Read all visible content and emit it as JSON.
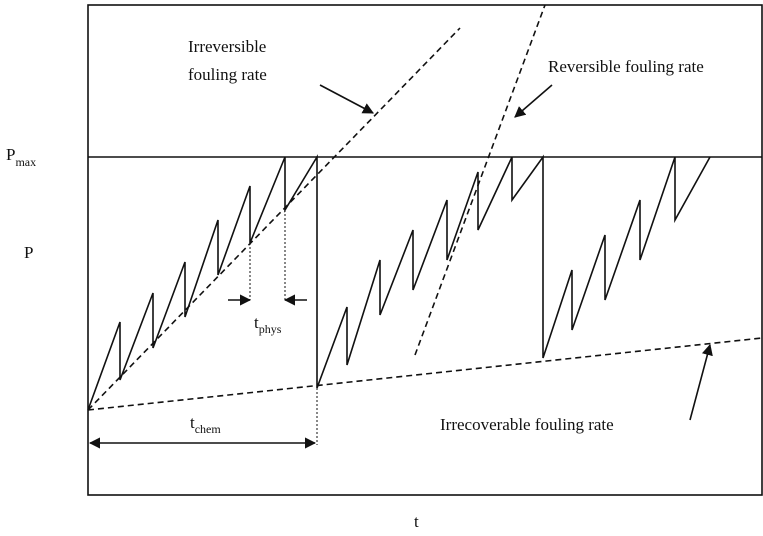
{
  "annotations": {
    "irreversible_line1": "Irreversible",
    "irreversible_line2": "fouling rate",
    "reversible": "Reversible fouling rate",
    "irrecoverable": "Irrecoverable fouling rate"
  },
  "axes": {
    "y_max": {
      "main": "P",
      "sub": "max"
    },
    "y": "P",
    "x": "t"
  },
  "intervals": {
    "phys": {
      "main": "t",
      "sub": "phys"
    },
    "chem": {
      "main": "t",
      "sub": "chem"
    }
  }
}
